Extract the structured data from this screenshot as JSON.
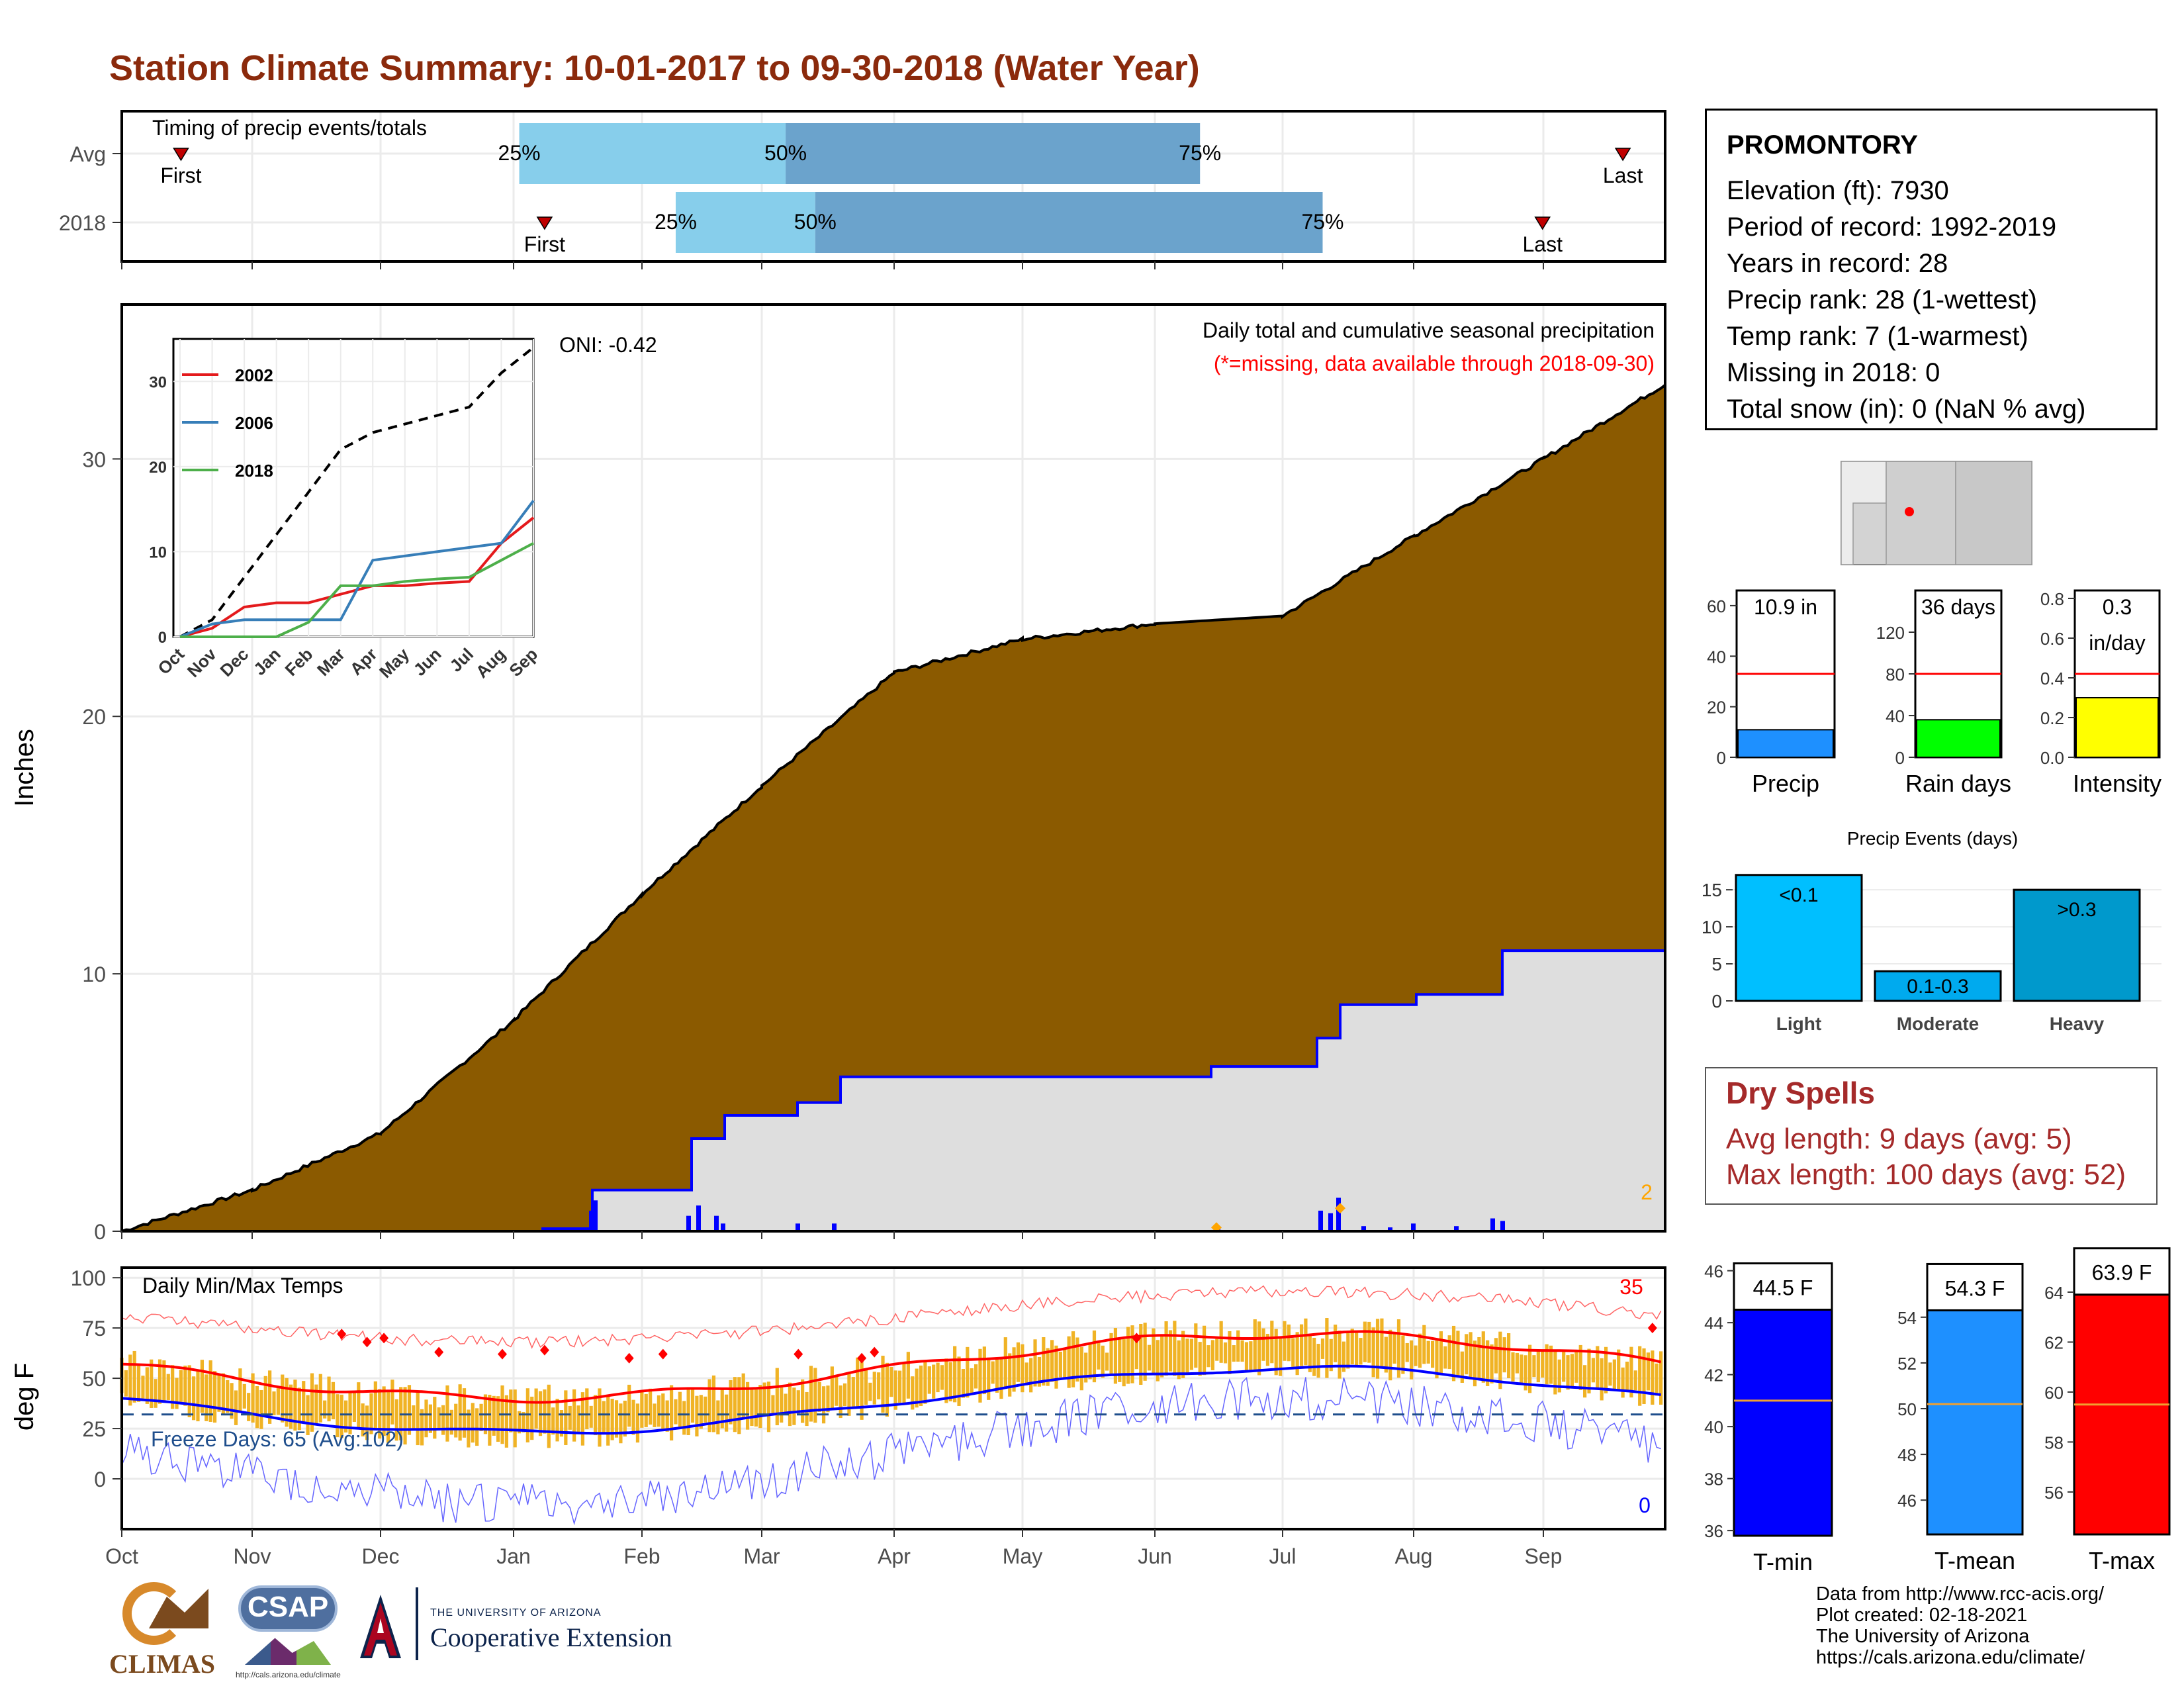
{
  "title": "Station Climate Summary: 10-01-2017 to 09-30-2018 (Water Year)",
  "colors": {
    "title": "#8b2a0c",
    "cumulative_fill": "#8b5a00",
    "cumulative_avg_fill": "#dedede",
    "precip_line": "#0000ff",
    "q_light": "#87ceeb",
    "q_dark": "#6ba3cc",
    "tband": "#f0b325",
    "tmax": "#ff0000",
    "tmin": "#0000ff"
  },
  "timing": {
    "label": "Timing of precip events/totals",
    "rows": [
      {
        "name": "Avg",
        "first_label": "First",
        "last_label": "Last",
        "first_x": 14,
        "q25": 94,
        "q50": 157,
        "q75": 255,
        "last_x": 355
      },
      {
        "name": "2018",
        "first_label": "First",
        "last_label": "Last",
        "first_x": 100,
        "q25": 131,
        "q50": 164,
        "q75": 284,
        "last_x": 336
      }
    ],
    "q_labels": [
      "25%",
      "50%",
      "75%"
    ]
  },
  "station": {
    "name": "PROMONTORY",
    "lines": [
      "Elevation (ft): 7930",
      "Period of record: 1992-2019",
      "Years in record: 28",
      "Precip rank: 28 (1-wettest)",
      "Temp rank: 7 (1-warmest)",
      "Missing in 2018: 0",
      "Total snow (in): 0 (NaN % avg)"
    ]
  },
  "main_precip": {
    "ylabel": "Inches",
    "yticks": [
      "0",
      "10",
      "20",
      "30"
    ],
    "months": [
      "Oct",
      "Nov",
      "Dec",
      "Jan",
      "Feb",
      "Mar",
      "Apr",
      "May",
      "Jun",
      "Jul",
      "Aug",
      "Sep"
    ],
    "title": "Daily total and cumulative seasonal precipitation",
    "subtitle": "(*=missing, data available through 2018-09-30)",
    "oni": "ONI: -0.42",
    "count_label": "2"
  },
  "chart_data": [
    {
      "type": "area",
      "name": "cumulative_precip",
      "x": [
        "Oct",
        "Nov",
        "Dec",
        "Jan",
        "Feb",
        "Mar",
        "Apr",
        "May",
        "Jun",
        "Jul",
        "Aug",
        "Sep",
        "Sep end"
      ],
      "series": [
        {
          "name": "Average cumulative",
          "values": [
            0,
            1.6,
            3.8,
            8.2,
            13.1,
            17.3,
            21.7,
            23.0,
            23.6,
            23.9,
            27.0,
            30.0,
            32.9
          ]
        },
        {
          "name": "2018 cumulative",
          "values": [
            0,
            0,
            0,
            0,
            1.6,
            4.8,
            6.0,
            6.0,
            6.0,
            6.4,
            9.0,
            10.9,
            10.9
          ]
        }
      ],
      "ylim": [
        0,
        36
      ]
    },
    {
      "type": "line",
      "name": "inset_comparison",
      "x": [
        "Oct",
        "Nov",
        "Dec",
        "Jan",
        "Feb",
        "Mar",
        "Apr",
        "May",
        "Jun",
        "Jul",
        "Aug",
        "Sep"
      ],
      "series": [
        {
          "name": "Avg",
          "values": [
            0,
            2,
            7,
            12,
            17,
            22,
            24,
            25,
            26,
            27,
            31,
            34
          ]
        },
        {
          "name": "2002",
          "values": [
            0,
            1,
            3.5,
            4,
            4,
            5,
            6,
            6,
            6.3,
            6.5,
            11,
            14
          ]
        },
        {
          "name": "2006",
          "values": [
            0,
            1.5,
            2,
            2,
            2,
            2,
            9,
            9.5,
            10,
            10.5,
            11,
            16
          ]
        },
        {
          "name": "2018",
          "values": [
            0,
            0,
            0,
            0,
            1.7,
            6,
            6,
            6.5,
            6.8,
            7,
            9,
            11
          ]
        }
      ],
      "legend": [
        "2002",
        "2006",
        "2018"
      ],
      "yticks": [
        "0",
        "10",
        "20",
        "30"
      ],
      "xticks": [
        "Oct",
        "Nov",
        "Dec",
        "Jan",
        "Feb",
        "Mar",
        "Apr",
        "May",
        "Jun",
        "Jul",
        "Aug",
        "Sep"
      ]
    },
    {
      "type": "bar",
      "name": "precip_summary",
      "categories": [
        "Precip",
        "Rain days",
        "Intensity"
      ],
      "values": [
        10.9,
        36,
        0.3
      ],
      "averages": [
        33,
        80,
        0.42
      ],
      "value_labels": [
        "10.9 in",
        "36 days",
        "0.3"
      ],
      "unit_label": "in/day",
      "yticks": [
        [
          "0",
          "20",
          "40",
          "60"
        ],
        [
          "0",
          "40",
          "80",
          "120"
        ],
        [
          "0.0",
          "0.2",
          "0.4",
          "0.6",
          "0.8"
        ]
      ]
    },
    {
      "type": "bar",
      "name": "precip_events",
      "title": "Precip Events (days)",
      "categories": [
        "Light",
        "Moderate",
        "Heavy"
      ],
      "values": [
        17,
        4,
        15
      ],
      "labels": [
        "<0.1",
        "0.1-0.3",
        ">0.3"
      ],
      "yticks": [
        "0",
        "5",
        "10",
        "15"
      ]
    },
    {
      "type": "bar",
      "name": "temperature_summary",
      "categories": [
        "T-min",
        "T-mean",
        "T-max"
      ],
      "values": [
        44.5,
        54.3,
        63.9
      ],
      "averages": [
        41.0,
        50.2,
        59.5
      ],
      "value_labels": [
        "44.5 F",
        "54.3 F",
        "63.9 F"
      ],
      "yticks": [
        [
          "36",
          "38",
          "40",
          "42",
          "44",
          "46"
        ],
        [
          "46",
          "48",
          "50",
          "52",
          "54"
        ],
        [
          "56",
          "58",
          "60",
          "62",
          "64"
        ]
      ]
    }
  ],
  "temps": {
    "ylabel": "deg F",
    "label": "Daily Min/Max Temps",
    "freeze": "Freeze Days: 65 (Avg:102)",
    "hot_count": "35",
    "cold_count": "0",
    "yticks": [
      "0",
      "25",
      "50",
      "75",
      "100"
    ]
  },
  "dry": {
    "title": "Dry Spells",
    "avg": "Avg length: 9 days (avg: 5)",
    "max": "Max length: 100 days (avg: 52)"
  },
  "credits": [
    "Data from http://www.rcc-acis.org/",
    "Plot created: 02-18-2021",
    "The University of Arizona",
    "https://cals.arizona.edu/climate/"
  ],
  "logos": {
    "climas": "CLIMAS",
    "csap": "CSAP",
    "csap_url": "http://cals.arizona.edu/climate",
    "ua_small": "THE UNIVERSITY OF ARIZONA",
    "ua_big": "Cooperative Extension"
  }
}
